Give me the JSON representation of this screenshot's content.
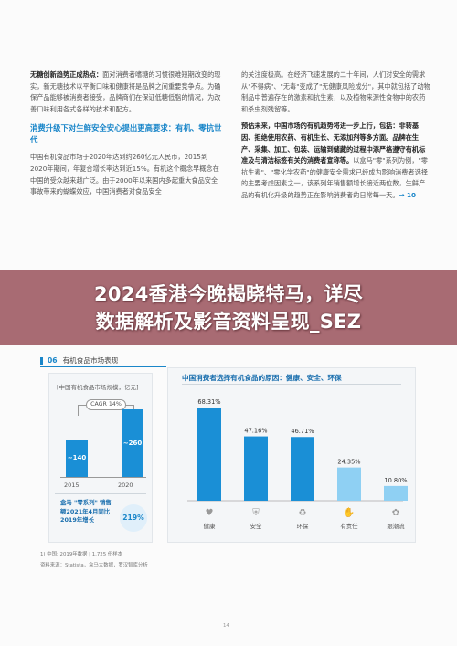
{
  "left": {
    "p1_lead": "无糖创新趋势正成热点：",
    "p1_body": "面对消费者嗜糖的习惯很难短期改变的现实，新无糖技术以平衡口味和健康将是品牌之间重要竞争点。为确保产品能够被消费者接受，品牌商们在保证低糖低脂的情况，为改善口味利用各式各样的技术和配方。",
    "heading": "消费升级下对生鲜安全安心提出更高要求：有机、零抗世代",
    "p2": "中国有机食品市场于2020年达到约260亿元人民币，2015到2020年期间，年复合增长率达到近15%。有机这个概念早概念在中国的受众越来越广泛。由于2000年以来国内多起重大食品安全事故带来的蝴蝶效应，中国消费者对食品安全"
  },
  "right": {
    "p1": "的关注度极高。在经济飞速发展的二十年间，人们对安全的需求从\"不得病\"、\"无毒\"变成了\"无健康风险成分\"，其中就包括了动物制品中普遍存在的激素和抗生素，以及植物来源性食物中的农药和杀虫剂残留等。",
    "p2_lead": "预估未来，中国市场的有机趋势将进一步上行，包括：非转基因、拒绝使用农药、有机生长、无添加剂等多方面。品牌在生产、采集、加工、包装、运输到储藏的过程中添严格遵守有机标准及与清洁标签有关的消费者宣称等。",
    "p2_body": "以盒马\"零\"系列为例，\"零抗生素\"、\"零化学农药\"的健康安全需求已经成为影响消费者选择的主要考虑因素之一，该系列年销售额增长接近两位数，生鲜产品的有机化升级的趋势正在影响消费者的日常每一天。",
    "ref": "→ 10"
  },
  "banner": {
    "line1": "2024香港今晚揭晓特马，详尽",
    "line2": "数据解析及影音资料呈现_SEZ"
  },
  "figure": {
    "number": "06",
    "caption": "有机食品市场表现"
  },
  "market_note": {
    "text": "盒马 \"零系列\" 销售额2021年4月同比2019年增长",
    "percent": "219%"
  },
  "chart_data": [
    {
      "type": "bar",
      "title": "[中国有机食品市场规模，亿元]",
      "categories": [
        "2015",
        "2020"
      ],
      "values": [
        140,
        260
      ],
      "labels": [
        "~140",
        "~260"
      ],
      "annotation": "CAGR 14%",
      "color": "#1a8fd6",
      "ylim": [
        0,
        300
      ]
    },
    {
      "type": "bar",
      "title": "中国消费者选择有机食品的原因：健康、安全、环保",
      "categories": [
        "健康",
        "安全",
        "环保",
        "有责任",
        "跟潮流"
      ],
      "values": [
        68.31,
        47.16,
        46.71,
        24.35,
        10.8
      ],
      "labels": [
        "68.31%",
        "47.16%",
        "46.71%",
        "24.35%",
        "10.80%"
      ],
      "colors": [
        "#1a8fd6",
        "#1a8fd6",
        "#1a8fd6",
        "#8fd0f3",
        "#8fd0f3"
      ],
      "icons": [
        "heart-icon",
        "shield-icon",
        "recycle-icon",
        "handshake-icon",
        "flower-icon"
      ],
      "ylim": [
        0,
        75
      ]
    }
  ],
  "footer": {
    "note": "1) 中国; 2019年数据 | 1,725 份样本",
    "source": "资料来源：Statista，盒马大数据，罗汉智库分析",
    "page": "14"
  }
}
